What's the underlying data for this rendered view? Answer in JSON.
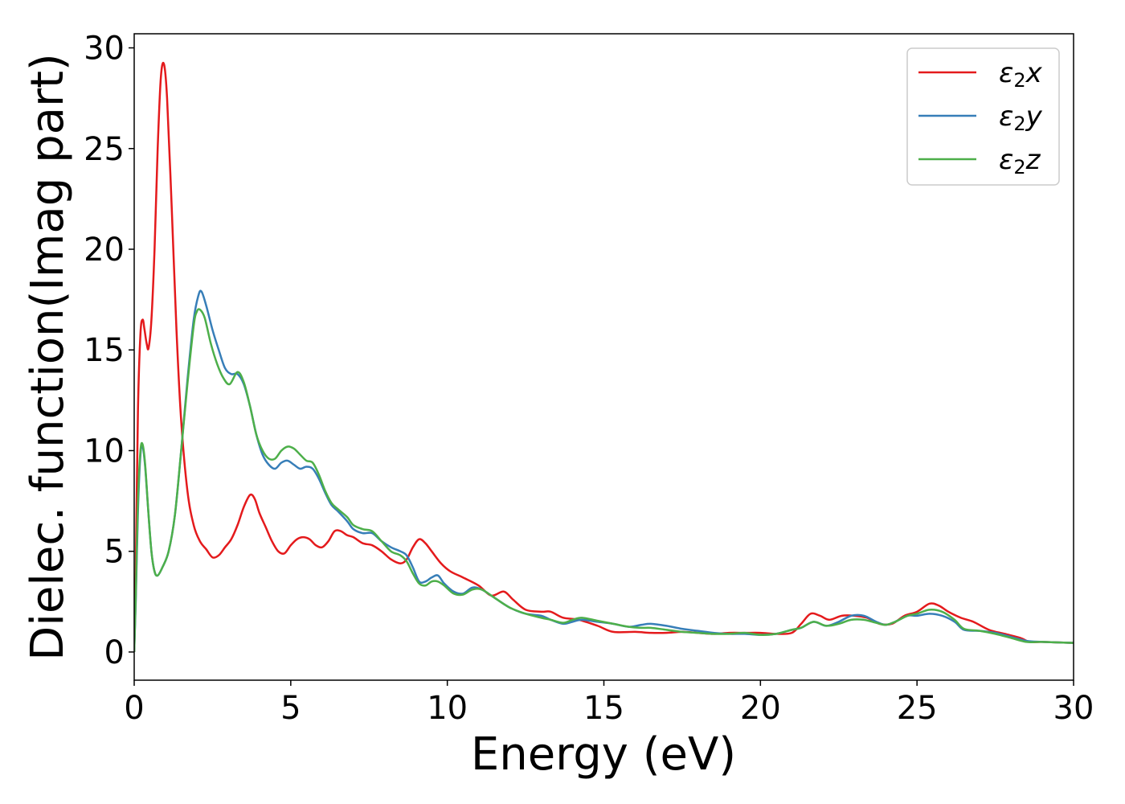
{
  "chart_data": {
    "type": "line",
    "xlabel": "Energy (eV)",
    "ylabel": "Dielec. function(Imag part)",
    "xlim": [
      0,
      30
    ],
    "ylim": [
      -1.4,
      30.7
    ],
    "xticks": [
      0,
      5,
      10,
      15,
      20,
      25,
      30
    ],
    "yticks": [
      0,
      5,
      10,
      15,
      20,
      25,
      30
    ],
    "grid": false,
    "legend_position": "top-right",
    "series": [
      {
        "name_base": "ε",
        "name_sub": "2",
        "name_suffix": "x",
        "color": "#e41a1c",
        "points": [
          [
            0,
            0
          ],
          [
            0.05,
            4
          ],
          [
            0.12,
            12
          ],
          [
            0.2,
            15.8
          ],
          [
            0.27,
            16.5
          ],
          [
            0.33,
            16.0
          ],
          [
            0.4,
            15.3
          ],
          [
            0.46,
            15.1
          ],
          [
            0.55,
            16.5
          ],
          [
            0.65,
            20
          ],
          [
            0.75,
            25
          ],
          [
            0.85,
            28.5
          ],
          [
            0.95,
            29.2
          ],
          [
            1.05,
            27.5
          ],
          [
            1.2,
            22
          ],
          [
            1.35,
            16
          ],
          [
            1.5,
            11.5
          ],
          [
            1.7,
            8
          ],
          [
            1.9,
            6.3
          ],
          [
            2.1,
            5.5
          ],
          [
            2.3,
            5.1
          ],
          [
            2.5,
            4.7
          ],
          [
            2.7,
            4.8
          ],
          [
            2.9,
            5.2
          ],
          [
            3.1,
            5.6
          ],
          [
            3.3,
            6.3
          ],
          [
            3.5,
            7.2
          ],
          [
            3.7,
            7.8
          ],
          [
            3.85,
            7.6
          ],
          [
            4.0,
            6.9
          ],
          [
            4.2,
            6.2
          ],
          [
            4.4,
            5.5
          ],
          [
            4.6,
            5.0
          ],
          [
            4.8,
            4.9
          ],
          [
            5.0,
            5.3
          ],
          [
            5.2,
            5.6
          ],
          [
            5.4,
            5.7
          ],
          [
            5.6,
            5.6
          ],
          [
            5.8,
            5.3
          ],
          [
            6.0,
            5.2
          ],
          [
            6.2,
            5.5
          ],
          [
            6.4,
            6.0
          ],
          [
            6.6,
            6.0
          ],
          [
            6.8,
            5.8
          ],
          [
            7.0,
            5.7
          ],
          [
            7.3,
            5.4
          ],
          [
            7.6,
            5.3
          ],
          [
            7.9,
            5.0
          ],
          [
            8.2,
            4.6
          ],
          [
            8.5,
            4.4
          ],
          [
            8.7,
            4.6
          ],
          [
            8.9,
            5.2
          ],
          [
            9.1,
            5.6
          ],
          [
            9.3,
            5.4
          ],
          [
            9.5,
            5.0
          ],
          [
            9.8,
            4.4
          ],
          [
            10.1,
            4.0
          ],
          [
            10.5,
            3.7
          ],
          [
            11.0,
            3.3
          ],
          [
            11.4,
            2.8
          ],
          [
            11.8,
            3.0
          ],
          [
            12.1,
            2.6
          ],
          [
            12.5,
            2.1
          ],
          [
            13.0,
            2.0
          ],
          [
            13.3,
            2.0
          ],
          [
            13.7,
            1.7
          ],
          [
            14.2,
            1.6
          ],
          [
            14.8,
            1.3
          ],
          [
            15.3,
            1.0
          ],
          [
            16.0,
            1.0
          ],
          [
            16.5,
            0.95
          ],
          [
            17.0,
            0.95
          ],
          [
            17.5,
            1.0
          ],
          [
            18.0,
            0.95
          ],
          [
            18.5,
            0.9
          ],
          [
            19.0,
            0.95
          ],
          [
            19.5,
            0.95
          ],
          [
            20.0,
            0.95
          ],
          [
            20.5,
            0.9
          ],
          [
            21.0,
            0.95
          ],
          [
            21.3,
            1.4
          ],
          [
            21.6,
            1.9
          ],
          [
            21.9,
            1.8
          ],
          [
            22.2,
            1.6
          ],
          [
            22.6,
            1.8
          ],
          [
            23.0,
            1.8
          ],
          [
            23.4,
            1.7
          ],
          [
            23.8,
            1.4
          ],
          [
            24.2,
            1.4
          ],
          [
            24.6,
            1.8
          ],
          [
            25.0,
            2.0
          ],
          [
            25.4,
            2.4
          ],
          [
            25.7,
            2.3
          ],
          [
            26.0,
            2.0
          ],
          [
            26.4,
            1.7
          ],
          [
            26.8,
            1.5
          ],
          [
            27.3,
            1.1
          ],
          [
            27.8,
            0.9
          ],
          [
            28.3,
            0.7
          ],
          [
            28.6,
            0.5
          ],
          [
            29.0,
            0.5
          ],
          [
            30.0,
            0.45
          ]
        ]
      },
      {
        "name_base": "ε",
        "name_sub": "2",
        "name_suffix": "y",
        "color": "#377eb8",
        "points": [
          [
            0,
            0
          ],
          [
            0.05,
            2.5
          ],
          [
            0.12,
            7
          ],
          [
            0.2,
            9.8
          ],
          [
            0.27,
            10.2
          ],
          [
            0.35,
            9.2
          ],
          [
            0.45,
            7
          ],
          [
            0.55,
            5
          ],
          [
            0.65,
            4.0
          ],
          [
            0.75,
            3.8
          ],
          [
            0.9,
            4.2
          ],
          [
            1.1,
            5.0
          ],
          [
            1.3,
            6.8
          ],
          [
            1.5,
            10
          ],
          [
            1.7,
            13.5
          ],
          [
            1.9,
            16.5
          ],
          [
            2.05,
            17.7
          ],
          [
            2.15,
            17.9
          ],
          [
            2.3,
            17.2
          ],
          [
            2.5,
            16.0
          ],
          [
            2.7,
            15.0
          ],
          [
            2.9,
            14.1
          ],
          [
            3.1,
            13.8
          ],
          [
            3.3,
            13.8
          ],
          [
            3.5,
            13.3
          ],
          [
            3.7,
            12.2
          ],
          [
            3.9,
            10.8
          ],
          [
            4.1,
            9.8
          ],
          [
            4.3,
            9.3
          ],
          [
            4.5,
            9.1
          ],
          [
            4.7,
            9.4
          ],
          [
            4.9,
            9.5
          ],
          [
            5.1,
            9.3
          ],
          [
            5.3,
            9.1
          ],
          [
            5.5,
            9.2
          ],
          [
            5.7,
            9.1
          ],
          [
            5.9,
            8.6
          ],
          [
            6.1,
            7.9
          ],
          [
            6.3,
            7.3
          ],
          [
            6.5,
            7.0
          ],
          [
            6.8,
            6.5
          ],
          [
            7.0,
            6.1
          ],
          [
            7.3,
            5.9
          ],
          [
            7.6,
            5.9
          ],
          [
            7.9,
            5.5
          ],
          [
            8.2,
            5.2
          ],
          [
            8.5,
            5.0
          ],
          [
            8.7,
            4.8
          ],
          [
            8.9,
            4.2
          ],
          [
            9.1,
            3.5
          ],
          [
            9.3,
            3.5
          ],
          [
            9.5,
            3.7
          ],
          [
            9.7,
            3.8
          ],
          [
            9.9,
            3.4
          ],
          [
            10.2,
            3.0
          ],
          [
            10.5,
            2.9
          ],
          [
            10.8,
            3.2
          ],
          [
            11.1,
            3.1
          ],
          [
            11.5,
            2.7
          ],
          [
            12.0,
            2.2
          ],
          [
            12.5,
            1.9
          ],
          [
            13.0,
            1.8
          ],
          [
            13.3,
            1.6
          ],
          [
            13.7,
            1.4
          ],
          [
            14.0,
            1.5
          ],
          [
            14.3,
            1.6
          ],
          [
            14.8,
            1.5
          ],
          [
            15.3,
            1.4
          ],
          [
            15.8,
            1.25
          ],
          [
            16.2,
            1.35
          ],
          [
            16.5,
            1.4
          ],
          [
            17.0,
            1.3
          ],
          [
            17.5,
            1.15
          ],
          [
            18.0,
            1.05
          ],
          [
            18.5,
            0.95
          ],
          [
            19.0,
            0.9
          ],
          [
            19.5,
            0.9
          ],
          [
            20.0,
            0.85
          ],
          [
            20.5,
            0.9
          ],
          [
            21.0,
            1.1
          ],
          [
            21.3,
            1.2
          ],
          [
            21.7,
            1.5
          ],
          [
            22.1,
            1.3
          ],
          [
            22.5,
            1.5
          ],
          [
            22.9,
            1.8
          ],
          [
            23.3,
            1.8
          ],
          [
            23.7,
            1.5
          ],
          [
            24.0,
            1.35
          ],
          [
            24.3,
            1.5
          ],
          [
            24.7,
            1.8
          ],
          [
            25.0,
            1.8
          ],
          [
            25.4,
            1.9
          ],
          [
            25.8,
            1.8
          ],
          [
            26.2,
            1.5
          ],
          [
            26.5,
            1.1
          ],
          [
            27.0,
            1.05
          ],
          [
            27.5,
            0.95
          ],
          [
            28.0,
            0.75
          ],
          [
            28.5,
            0.55
          ],
          [
            29.0,
            0.5
          ],
          [
            30.0,
            0.45
          ]
        ]
      },
      {
        "name_base": "ε",
        "name_sub": "2",
        "name_suffix": "z",
        "color": "#4daf4a",
        "points": [
          [
            0,
            0
          ],
          [
            0.05,
            2.8
          ],
          [
            0.12,
            7.5
          ],
          [
            0.2,
            10.0
          ],
          [
            0.27,
            10.3
          ],
          [
            0.35,
            9.3
          ],
          [
            0.45,
            7
          ],
          [
            0.55,
            5
          ],
          [
            0.65,
            4.0
          ],
          [
            0.75,
            3.8
          ],
          [
            0.9,
            4.2
          ],
          [
            1.1,
            5.0
          ],
          [
            1.3,
            6.8
          ],
          [
            1.5,
            10
          ],
          [
            1.7,
            13.3
          ],
          [
            1.9,
            16.2
          ],
          [
            2.0,
            16.9
          ],
          [
            2.1,
            17.0
          ],
          [
            2.25,
            16.6
          ],
          [
            2.45,
            15.3
          ],
          [
            2.65,
            14.3
          ],
          [
            2.85,
            13.6
          ],
          [
            3.05,
            13.3
          ],
          [
            3.3,
            13.9
          ],
          [
            3.5,
            13.4
          ],
          [
            3.7,
            12.2
          ],
          [
            3.9,
            10.8
          ],
          [
            4.1,
            10.0
          ],
          [
            4.3,
            9.6
          ],
          [
            4.5,
            9.6
          ],
          [
            4.7,
            10.0
          ],
          [
            4.9,
            10.2
          ],
          [
            5.1,
            10.1
          ],
          [
            5.3,
            9.8
          ],
          [
            5.5,
            9.5
          ],
          [
            5.7,
            9.4
          ],
          [
            5.9,
            8.8
          ],
          [
            6.1,
            8.0
          ],
          [
            6.3,
            7.4
          ],
          [
            6.5,
            7.1
          ],
          [
            6.8,
            6.7
          ],
          [
            7.0,
            6.3
          ],
          [
            7.3,
            6.1
          ],
          [
            7.6,
            6.0
          ],
          [
            7.9,
            5.5
          ],
          [
            8.2,
            5.0
          ],
          [
            8.5,
            4.8
          ],
          [
            8.7,
            4.5
          ],
          [
            8.9,
            3.9
          ],
          [
            9.1,
            3.4
          ],
          [
            9.3,
            3.3
          ],
          [
            9.5,
            3.5
          ],
          [
            9.7,
            3.5
          ],
          [
            9.9,
            3.3
          ],
          [
            10.2,
            2.9
          ],
          [
            10.5,
            2.85
          ],
          [
            10.8,
            3.1
          ],
          [
            11.1,
            3.1
          ],
          [
            11.5,
            2.7
          ],
          [
            12.0,
            2.2
          ],
          [
            12.5,
            1.9
          ],
          [
            13.0,
            1.7
          ],
          [
            13.3,
            1.6
          ],
          [
            13.7,
            1.45
          ],
          [
            14.0,
            1.6
          ],
          [
            14.3,
            1.7
          ],
          [
            14.8,
            1.55
          ],
          [
            15.3,
            1.4
          ],
          [
            15.8,
            1.25
          ],
          [
            16.2,
            1.2
          ],
          [
            16.5,
            1.2
          ],
          [
            17.0,
            1.1
          ],
          [
            17.5,
            1.0
          ],
          [
            18.0,
            0.95
          ],
          [
            18.5,
            0.9
          ],
          [
            19.0,
            0.9
          ],
          [
            19.5,
            0.95
          ],
          [
            20.0,
            0.85
          ],
          [
            20.5,
            0.9
          ],
          [
            21.0,
            1.1
          ],
          [
            21.3,
            1.2
          ],
          [
            21.7,
            1.5
          ],
          [
            22.1,
            1.3
          ],
          [
            22.5,
            1.4
          ],
          [
            22.9,
            1.6
          ],
          [
            23.3,
            1.6
          ],
          [
            23.7,
            1.45
          ],
          [
            24.0,
            1.35
          ],
          [
            24.3,
            1.5
          ],
          [
            24.7,
            1.8
          ],
          [
            25.0,
            1.9
          ],
          [
            25.4,
            2.1
          ],
          [
            25.8,
            2.0
          ],
          [
            26.2,
            1.6
          ],
          [
            26.5,
            1.15
          ],
          [
            27.0,
            1.05
          ],
          [
            27.5,
            0.9
          ],
          [
            28.0,
            0.7
          ],
          [
            28.5,
            0.5
          ],
          [
            29.0,
            0.5
          ],
          [
            30.0,
            0.45
          ]
        ]
      }
    ]
  }
}
